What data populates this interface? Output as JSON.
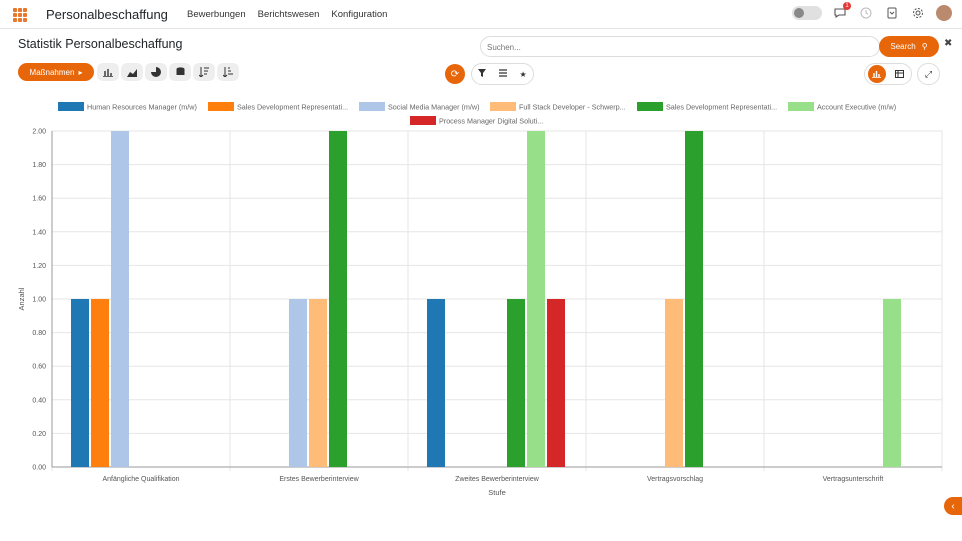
{
  "navbar": {
    "brand": "Personalbeschaffung",
    "menu": [
      "Bewerbungen",
      "Berichtswesen",
      "Konfiguration"
    ],
    "icons": [
      "toggle-switch",
      "chat-icon",
      "clock-icon",
      "phone-icon",
      "gear-icon",
      "avatar"
    ],
    "notification_count": "1"
  },
  "control": {
    "title": "Statistik Personalbeschaffung",
    "search_placeholder": "Suchen...",
    "search_label": "Search",
    "actions_label": "Maßnahmen",
    "tools": [
      "bar-chart-icon",
      "area-chart-icon",
      "pie-chart-icon",
      "database-icon",
      "sort-desc-icon",
      "sort-asc-icon"
    ],
    "filter_icons": [
      "filter-icon",
      "group-icon",
      "star-icon"
    ],
    "view_icons": [
      "graph-view-icon",
      "pivot-view-icon"
    ]
  },
  "colors": {
    "accent": "#e8660a",
    "series": [
      "#1f77b4",
      "#ff7f0e",
      "#aec7e8",
      "#ffbb78",
      "#2ca02c",
      "#98df8a",
      "#d62728"
    ]
  },
  "chart_data": {
    "type": "bar",
    "title": "",
    "xlabel": "Stufe",
    "ylabel": "Anzahl",
    "ylim": [
      0,
      2
    ],
    "yticks": [
      "0.00",
      "0.20",
      "0.40",
      "0.60",
      "0.80",
      "1.00",
      "1.20",
      "1.40",
      "1.60",
      "1.80",
      "2.00"
    ],
    "legend_position": "top",
    "grid": true,
    "categories": [
      "Anfängliche Qualifikation",
      "Erstes Bewerberinterview",
      "Zweites Bewerberinterview",
      "Vertragsvorschlag",
      "Vertragsunterschrift"
    ],
    "series": [
      {
        "name": "Human Resources Manager (m/w)",
        "values": [
          1,
          0,
          1,
          0,
          0
        ]
      },
      {
        "name": "Sales Development Representati...",
        "values": [
          1,
          0,
          0,
          0,
          0
        ]
      },
      {
        "name": "Social Media Manager (m/w)",
        "values": [
          2,
          1,
          0,
          0,
          0
        ]
      },
      {
        "name": "Full Stack Developer - Schwerp...",
        "values": [
          0,
          1,
          0,
          1,
          0
        ]
      },
      {
        "name": "Sales Development Representati...",
        "values": [
          0,
          2,
          1,
          2,
          0
        ]
      },
      {
        "name": "Account Executive (m/w)",
        "values": [
          0,
          0,
          2,
          0,
          1
        ]
      },
      {
        "name": "Process Manager Digital Soluti...",
        "values": [
          0,
          0,
          1,
          0,
          0
        ]
      }
    ]
  }
}
